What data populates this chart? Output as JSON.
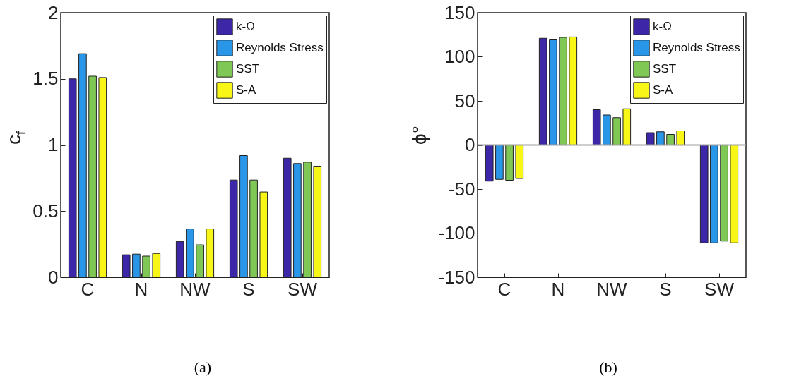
{
  "chart_data": [
    {
      "type": "bar",
      "ylabel": "c$_{f}$",
      "categories": [
        "C",
        "N",
        "NW",
        "S",
        "SW"
      ],
      "series": [
        {
          "name": "k-Ω",
          "color": "#3d27a8",
          "values": [
            1.5,
            0.17,
            0.27,
            0.735,
            0.9
          ]
        },
        {
          "name": "Reynolds Stress",
          "color": "#2a96e8",
          "values": [
            1.69,
            0.175,
            0.365,
            0.92,
            0.86
          ]
        },
        {
          "name": "SST",
          "color": "#80c855",
          "values": [
            1.52,
            0.16,
            0.245,
            0.735,
            0.87
          ]
        },
        {
          "name": "S-A",
          "color": "#f8f617",
          "values": [
            1.51,
            0.18,
            0.365,
            0.645,
            0.835
          ]
        }
      ],
      "ylim": [
        0,
        2
      ],
      "yticks": [
        0,
        0.5,
        1,
        1.5,
        2
      ],
      "legend": "top right",
      "annotations": [
        "(a)"
      ]
    },
    {
      "type": "bar",
      "ylabel": "ϕ°",
      "categories": [
        "C",
        "N",
        "NW",
        "S",
        "SW"
      ],
      "series": [
        {
          "name": "k-Ω",
          "color": "#3d27a8",
          "values": [
            -41,
            121,
            40,
            14,
            -111
          ]
        },
        {
          "name": "Reynolds Stress",
          "color": "#2a96e8",
          "values": [
            -39,
            120,
            34,
            15,
            -111
          ]
        },
        {
          "name": "SST",
          "color": "#80c855",
          "values": [
            -40,
            122,
            31,
            12,
            -109
          ]
        },
        {
          "name": "S-A",
          "color": "#f8f617",
          "values": [
            -38,
            122.5,
            41,
            16,
            -111
          ]
        }
      ],
      "ylim": [
        -150,
        150
      ],
      "yticks": [
        -150,
        -100,
        -50,
        0,
        50,
        100,
        150
      ],
      "legend": "top right",
      "ref_lines": [
        {
          "axis": "y",
          "value": 0,
          "color": "#a0a0a0"
        }
      ],
      "annotations": [
        "(b)"
      ]
    }
  ]
}
